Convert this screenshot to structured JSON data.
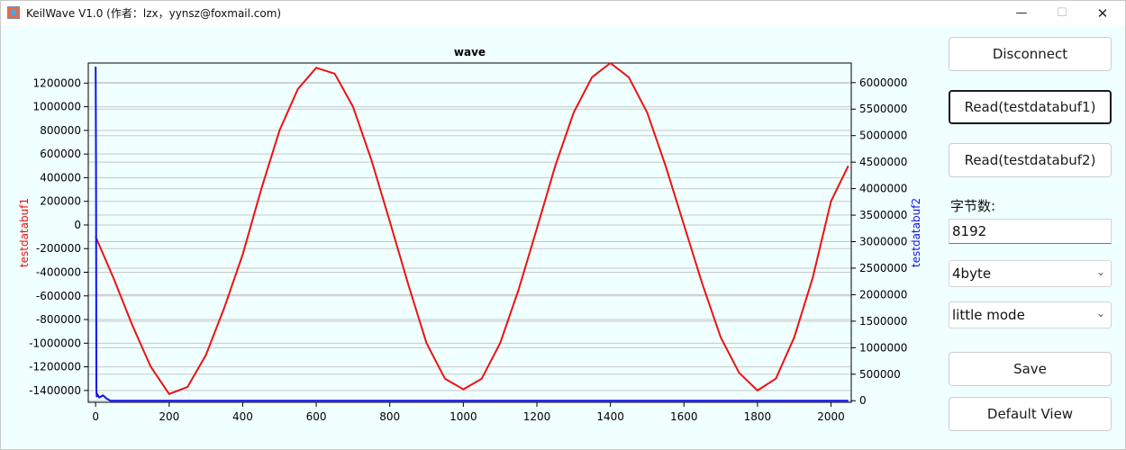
{
  "window": {
    "title": "KeilWave V1.0 (作者：lzx，yynsz@foxmail.com)",
    "minimize_glyph": "—",
    "maximize_glyph": "☐",
    "close_glyph": "✕"
  },
  "controls": {
    "disconnect_label": "Disconnect",
    "read1_label": "Read(testdatabuf1)",
    "read2_label": "Read(testdatabuf2)",
    "bytes_label": "字节数:",
    "bytes_value": "8192",
    "bytes_width_select": "4byte",
    "endian_select": "little mode",
    "save_label": "Save",
    "default_view_label": "Default View",
    "combo_arrow_glyph": "⌄"
  },
  "colors": {
    "series1": "#ee1111",
    "series2": "#1111ee",
    "grid": "#c8c8c8"
  },
  "chart_data": {
    "type": "line",
    "title": "wave",
    "xlabel": "",
    "ylabel": "testdatabuf1",
    "y2label": "testdatabuf2",
    "xlim": [
      -20,
      2055
    ],
    "ylim": [
      -1500000,
      1370000
    ],
    "y2lim": [
      -30000,
      6370000
    ],
    "xticks": [
      0,
      200,
      400,
      600,
      800,
      1000,
      1200,
      1400,
      1600,
      1800,
      2000
    ],
    "yticks": [
      -1400000,
      -1200000,
      -1000000,
      -800000,
      -600000,
      -400000,
      -200000,
      0,
      200000,
      400000,
      600000,
      800000,
      1000000,
      1200000
    ],
    "y2ticks": [
      0,
      500000,
      1000000,
      1500000,
      2000000,
      2500000,
      3000000,
      3500000,
      4000000,
      4500000,
      5000000,
      5500000,
      6000000
    ],
    "grid": true,
    "series": [
      {
        "name": "testdatabuf1",
        "axis": "left",
        "x": [
          0,
          50,
          100,
          150,
          200,
          250,
          300,
          350,
          400,
          450,
          500,
          550,
          600,
          650,
          700,
          750,
          800,
          850,
          900,
          950,
          1000,
          1050,
          1100,
          1150,
          1200,
          1250,
          1300,
          1350,
          1400,
          1450,
          1500,
          1550,
          1600,
          1650,
          1700,
          1750,
          1800,
          1850,
          1900,
          1950,
          2000,
          2047
        ],
        "values": [
          -100000,
          -460000,
          -850000,
          -1200000,
          -1430000,
          -1370000,
          -1100000,
          -700000,
          -250000,
          300000,
          800000,
          1150000,
          1330000,
          1280000,
          1000000,
          550000,
          30000,
          -500000,
          -1000000,
          -1300000,
          -1390000,
          -1300000,
          -1000000,
          -550000,
          -30000,
          500000,
          950000,
          1250000,
          1370000,
          1250000,
          950000,
          500000,
          0,
          -500000,
          -950000,
          -1250000,
          -1400000,
          -1300000,
          -950000,
          -450000,
          200000,
          500000
        ]
      },
      {
        "name": "testdatabuf2",
        "axis": "right",
        "x": [
          0,
          1,
          2,
          3,
          5,
          10,
          20,
          30,
          40,
          100,
          500,
          1000,
          1500,
          2047
        ],
        "values": [
          6300000,
          4400000,
          200000,
          80000,
          120000,
          60000,
          100000,
          40000,
          0,
          0,
          0,
          0,
          0,
          0
        ]
      }
    ]
  }
}
